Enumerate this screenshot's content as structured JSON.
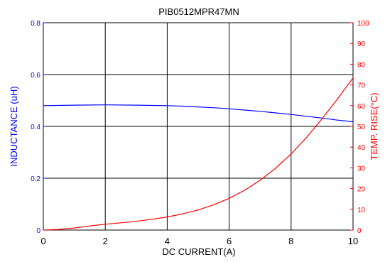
{
  "chart_data": {
    "type": "line",
    "title": "PIB0512MPR47MN",
    "xlabel": "DC CURRENT(A)",
    "ylabel_left": "INDUCTANCE (uH)",
    "ylabel_right": "TEMP. RISE(°C)",
    "xlim": [
      0,
      10
    ],
    "ylim_left": [
      0,
      0.8
    ],
    "ylim_right": [
      0,
      100
    ],
    "grid": true,
    "x_ticks": [
      "0",
      "2",
      "4",
      "6",
      "8",
      "10"
    ],
    "y_left_ticks": [
      "0",
      "0.2",
      "0.4",
      "0.6",
      "0.8"
    ],
    "y_right_ticks": [
      "0",
      "10",
      "20",
      "30",
      "40",
      "50",
      "60",
      "70",
      "80",
      "90",
      "100"
    ],
    "colors": {
      "left": "#0000ff",
      "right": "#ff0000",
      "axes": "#000000"
    },
    "series": [
      {
        "axis": "left",
        "x": [
          0,
          1,
          2,
          3,
          4,
          4.5,
          5,
          5.5,
          6,
          6.5,
          7,
          7.5,
          8,
          8.5,
          9,
          9.5,
          10
        ],
        "y": [
          0.48,
          0.482,
          0.483,
          0.482,
          0.48,
          0.478,
          0.475,
          0.472,
          0.468,
          0.463,
          0.458,
          0.452,
          0.446,
          0.439,
          0.432,
          0.424,
          0.418
        ]
      },
      {
        "axis": "right",
        "x": [
          0,
          0.5,
          1,
          1.5,
          2,
          2.5,
          3,
          3.5,
          4,
          4.5,
          5,
          5.5,
          6,
          6.5,
          7,
          7.5,
          8,
          8.5,
          9,
          9.5,
          10
        ],
        "y": [
          0,
          0.3,
          1,
          2,
          2.8,
          3.5,
          4.2,
          5.2,
          6.3,
          7.8,
          9.7,
          12.2,
          15.3,
          19.2,
          24,
          29.8,
          36.7,
          44.7,
          53.7,
          63.3,
          73.4
        ]
      }
    ]
  }
}
